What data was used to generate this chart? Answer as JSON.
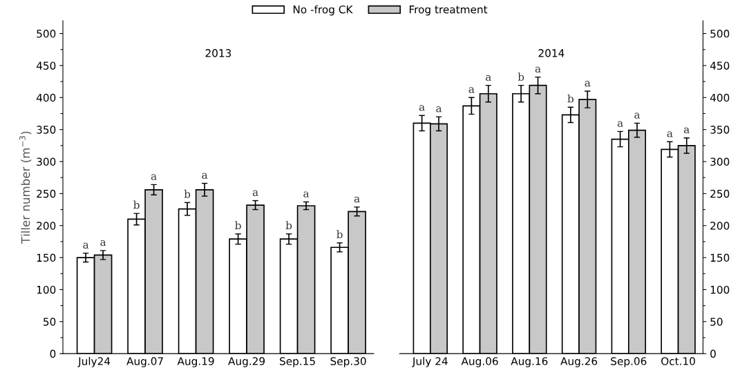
{
  "chart_data": [
    {
      "type": "bar",
      "title": "2013",
      "ylabel": "Tiller number (m$^{−3}$)",
      "categories": [
        "July24",
        "Aug.07",
        "Aug.19",
        "Aug.29",
        "Sep.15",
        "Sep.30"
      ],
      "series": [
        {
          "name": "No -frog CK",
          "color": "#ffffff",
          "values": [
            150,
            210,
            226,
            179,
            179,
            166
          ],
          "errors": [
            7,
            9,
            10,
            8,
            8,
            7
          ],
          "value_labels": [
            "a",
            "b",
            "b",
            "b",
            "b",
            "b"
          ]
        },
        {
          "name": "Frog treatment",
          "color": "#c8c8c8",
          "values": [
            154,
            256,
            256,
            232,
            231,
            222
          ],
          "errors": [
            7,
            8,
            10,
            7,
            6,
            7
          ],
          "value_labels": [
            "a",
            "a",
            "a",
            "a",
            "a",
            "a"
          ]
        }
      ],
      "ylim": [
        0,
        520
      ],
      "yticks": [
        0,
        {
          "value": 25,
          "label": null
        },
        50,
        {
          "value": 75,
          "label": null
        },
        100,
        {
          "value": 125,
          "label": null
        },
        150,
        {
          "value": 175,
          "label": null
        },
        200,
        {
          "value": 225,
          "label": null
        },
        250,
        {
          "value": 275,
          "label": null
        },
        300,
        {
          "value": 325,
          "label": null
        },
        350,
        {
          "value": 375,
          "label": null
        },
        400,
        {
          "value": 425,
          "label": null
        },
        450,
        {
          "value": 475,
          "label": null
        },
        500
      ],
      "legend": "top",
      "grid": false
    },
    {
      "type": "bar",
      "title": "2014",
      "categories": [
        "July 24",
        "Aug.06",
        "Aug.16",
        "Aug.26",
        "Sep.06",
        "Oct.10"
      ],
      "series": [
        {
          "color": "#ffffff",
          "axis": "y2",
          "values": [
            360,
            387,
            406,
            373,
            335,
            319
          ],
          "errors": [
            12,
            13,
            13,
            12,
            12,
            12
          ],
          "value_labels": [
            "a",
            "a",
            "b",
            "b",
            "a",
            "a"
          ]
        },
        {
          "color": "#c8c8c8",
          "axis": "y2",
          "values": [
            359,
            406,
            419,
            397,
            349,
            325
          ],
          "errors": [
            11,
            13,
            13,
            13,
            11,
            12
          ],
          "value_labels": [
            "a",
            "a",
            "a",
            "a",
            "a",
            "a"
          ]
        }
      ],
      "y2lim": [
        0,
        520
      ],
      "y2ticks": [
        0,
        {
          "value": 25,
          "label": null
        },
        50,
        {
          "value": 75,
          "label": null
        },
        100,
        {
          "value": 125,
          "label": null
        },
        150,
        {
          "value": 175,
          "label": null
        },
        200,
        {
          "value": 225,
          "label": null
        },
        250,
        {
          "value": 275,
          "label": null
        },
        300,
        {
          "value": 325,
          "label": null
        },
        350,
        {
          "value": 375,
          "label": null
        },
        400,
        {
          "value": 425,
          "label": null
        },
        450,
        {
          "value": 475,
          "label": null
        },
        500
      ],
      "legend": false,
      "grid": false
    }
  ]
}
